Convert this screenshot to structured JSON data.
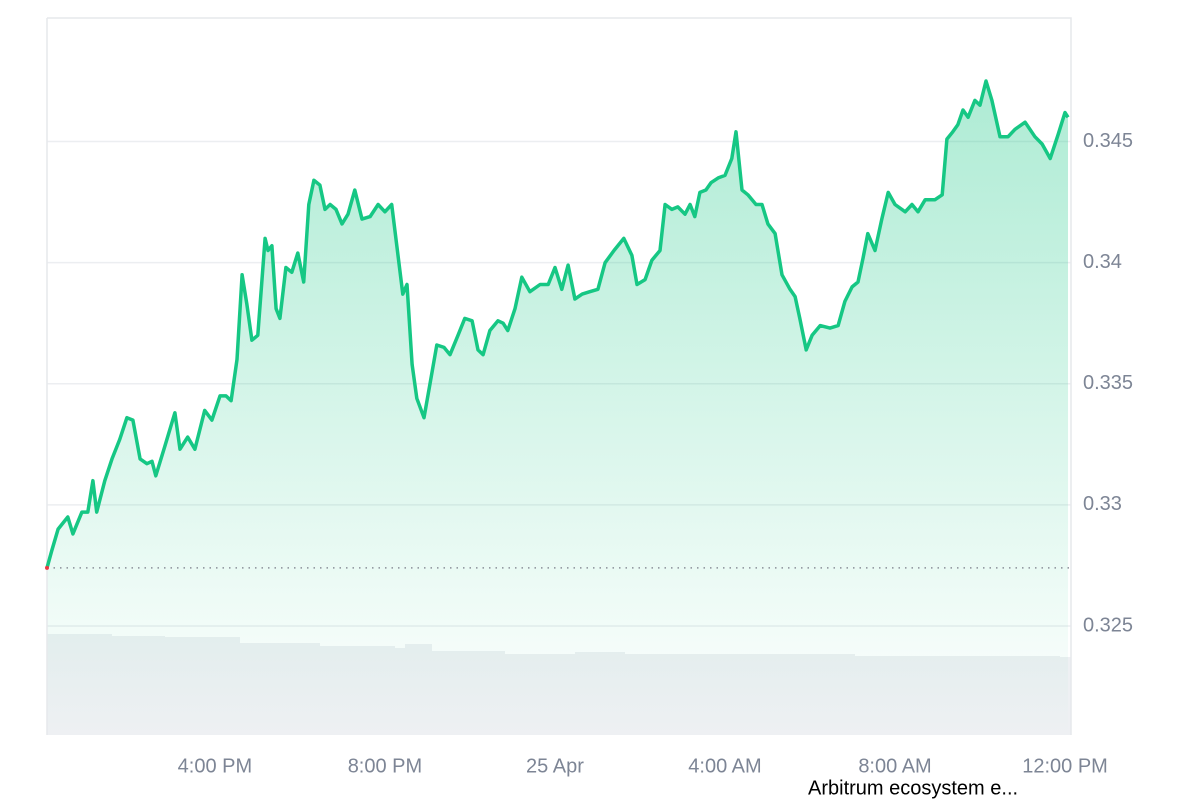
{
  "chart_data": {
    "type": "line",
    "caption": "Arbitrum ecosystem e...",
    "x": [
      12.05,
      12.16,
      12.31,
      12.54,
      12.66,
      12.87,
      13.01,
      13.13,
      13.22,
      13.41,
      13.58,
      13.76,
      13.93,
      14.07,
      14.24,
      14.4,
      14.52,
      14.61,
      14.82,
      15.06,
      15.18,
      15.36,
      15.53,
      15.76,
      15.93,
      16.12,
      16.26,
      16.38,
      16.52,
      16.64,
      16.75,
      16.87,
      17.01,
      17.18,
      17.25,
      17.34,
      17.44,
      17.53,
      17.67,
      17.81,
      17.95,
      18.09,
      18.21,
      18.33,
      18.47,
      18.59,
      18.71,
      18.85,
      18.99,
      19.13,
      19.29,
      19.46,
      19.65,
      19.84,
      20.0,
      20.16,
      20.28,
      20.42,
      20.52,
      20.64,
      20.75,
      20.92,
      21.06,
      21.22,
      21.39,
      21.53,
      21.72,
      21.88,
      22.05,
      22.19,
      22.31,
      22.47,
      22.66,
      22.78,
      22.89,
      23.06,
      23.22,
      23.41,
      23.65,
      23.84,
      24.0,
      24.16,
      24.31,
      24.47,
      24.64,
      24.82,
      25.01,
      25.18,
      25.39,
      25.62,
      25.81,
      25.93,
      26.12,
      26.28,
      26.47,
      26.59,
      26.75,
      26.89,
      27.06,
      27.18,
      27.29,
      27.41,
      27.55,
      27.67,
      27.84,
      28.0,
      28.16,
      28.26,
      28.4,
      28.54,
      28.73,
      28.87,
      29.01,
      29.18,
      29.34,
      29.53,
      29.65,
      29.76,
      29.91,
      30.05,
      30.24,
      30.47,
      30.66,
      30.82,
      30.99,
      31.13,
      31.25,
      31.36,
      31.53,
      31.69,
      31.84,
      32.0,
      32.24,
      32.4,
      32.54,
      32.71,
      32.94,
      33.11,
      33.22,
      33.36,
      33.48,
      33.6,
      33.72,
      33.88,
      34.0,
      34.14,
      34.28,
      34.47,
      34.66,
      34.82,
      35.06,
      35.29,
      35.46,
      35.65,
      35.84,
      36.0,
      36.07
    ],
    "series": [
      {
        "color": "#16c784",
        "values": [
          0.3274,
          0.3281,
          0.329,
          0.3295,
          0.3288,
          0.3297,
          0.3297,
          0.331,
          0.3297,
          0.331,
          0.3319,
          0.3327,
          0.3336,
          0.3335,
          0.3319,
          0.3317,
          0.3318,
          0.3312,
          0.3324,
          0.3338,
          0.3323,
          0.3328,
          0.3323,
          0.3339,
          0.3335,
          0.3345,
          0.3345,
          0.3343,
          0.336,
          0.3395,
          0.3383,
          0.3368,
          0.337,
          0.341,
          0.3405,
          0.3407,
          0.3381,
          0.3377,
          0.3398,
          0.3396,
          0.3404,
          0.3392,
          0.3424,
          0.3434,
          0.3432,
          0.3422,
          0.3424,
          0.3422,
          0.3416,
          0.342,
          0.343,
          0.3418,
          0.3419,
          0.3424,
          0.3421,
          0.3424,
          0.3407,
          0.3387,
          0.3391,
          0.3358,
          0.3344,
          0.3336,
          0.335,
          0.3366,
          0.3365,
          0.3362,
          0.337,
          0.3377,
          0.3376,
          0.3364,
          0.3362,
          0.3372,
          0.3376,
          0.3375,
          0.3372,
          0.3381,
          0.3394,
          0.3388,
          0.3391,
          0.3391,
          0.3398,
          0.3389,
          0.3399,
          0.3385,
          0.3387,
          0.3388,
          0.3389,
          0.34,
          0.3405,
          0.341,
          0.3403,
          0.3391,
          0.3393,
          0.3401,
          0.3405,
          0.3424,
          0.3422,
          0.3423,
          0.342,
          0.3424,
          0.3419,
          0.3429,
          0.343,
          0.3433,
          0.3435,
          0.3436,
          0.3443,
          0.3454,
          0.343,
          0.3428,
          0.3424,
          0.3424,
          0.3416,
          0.3412,
          0.3395,
          0.3389,
          0.3386,
          0.3377,
          0.3364,
          0.337,
          0.3374,
          0.3373,
          0.3374,
          0.3384,
          0.339,
          0.3392,
          0.3402,
          0.3412,
          0.3405,
          0.3418,
          0.3429,
          0.3424,
          0.3421,
          0.3424,
          0.3421,
          0.3426,
          0.3426,
          0.3428,
          0.3451,
          0.3454,
          0.3457,
          0.3463,
          0.346,
          0.3467,
          0.3465,
          0.3475,
          0.3467,
          0.3452,
          0.3452,
          0.3455,
          0.3458,
          0.3452,
          0.3449,
          0.3443,
          0.3453,
          0.3462,
          0.346
        ]
      }
    ],
    "reference_line": 0.3274,
    "xlim": [
      12.05,
      36.14
    ],
    "xticks": [
      {
        "value": 16,
        "label": "4:00 PM"
      },
      {
        "value": 20,
        "label": "8:00 PM"
      },
      {
        "value": 24,
        "label": "25 Apr"
      },
      {
        "value": 28,
        "label": "4:00 AM"
      },
      {
        "value": 32,
        "label": "8:00 AM"
      },
      {
        "value": 36,
        "label": "12:00 PM"
      }
    ],
    "ylim": [
      0.3205,
      0.3501
    ],
    "yticks": [
      0.325,
      0.33,
      0.335,
      0.34,
      0.345
    ],
    "grid": true
  }
}
